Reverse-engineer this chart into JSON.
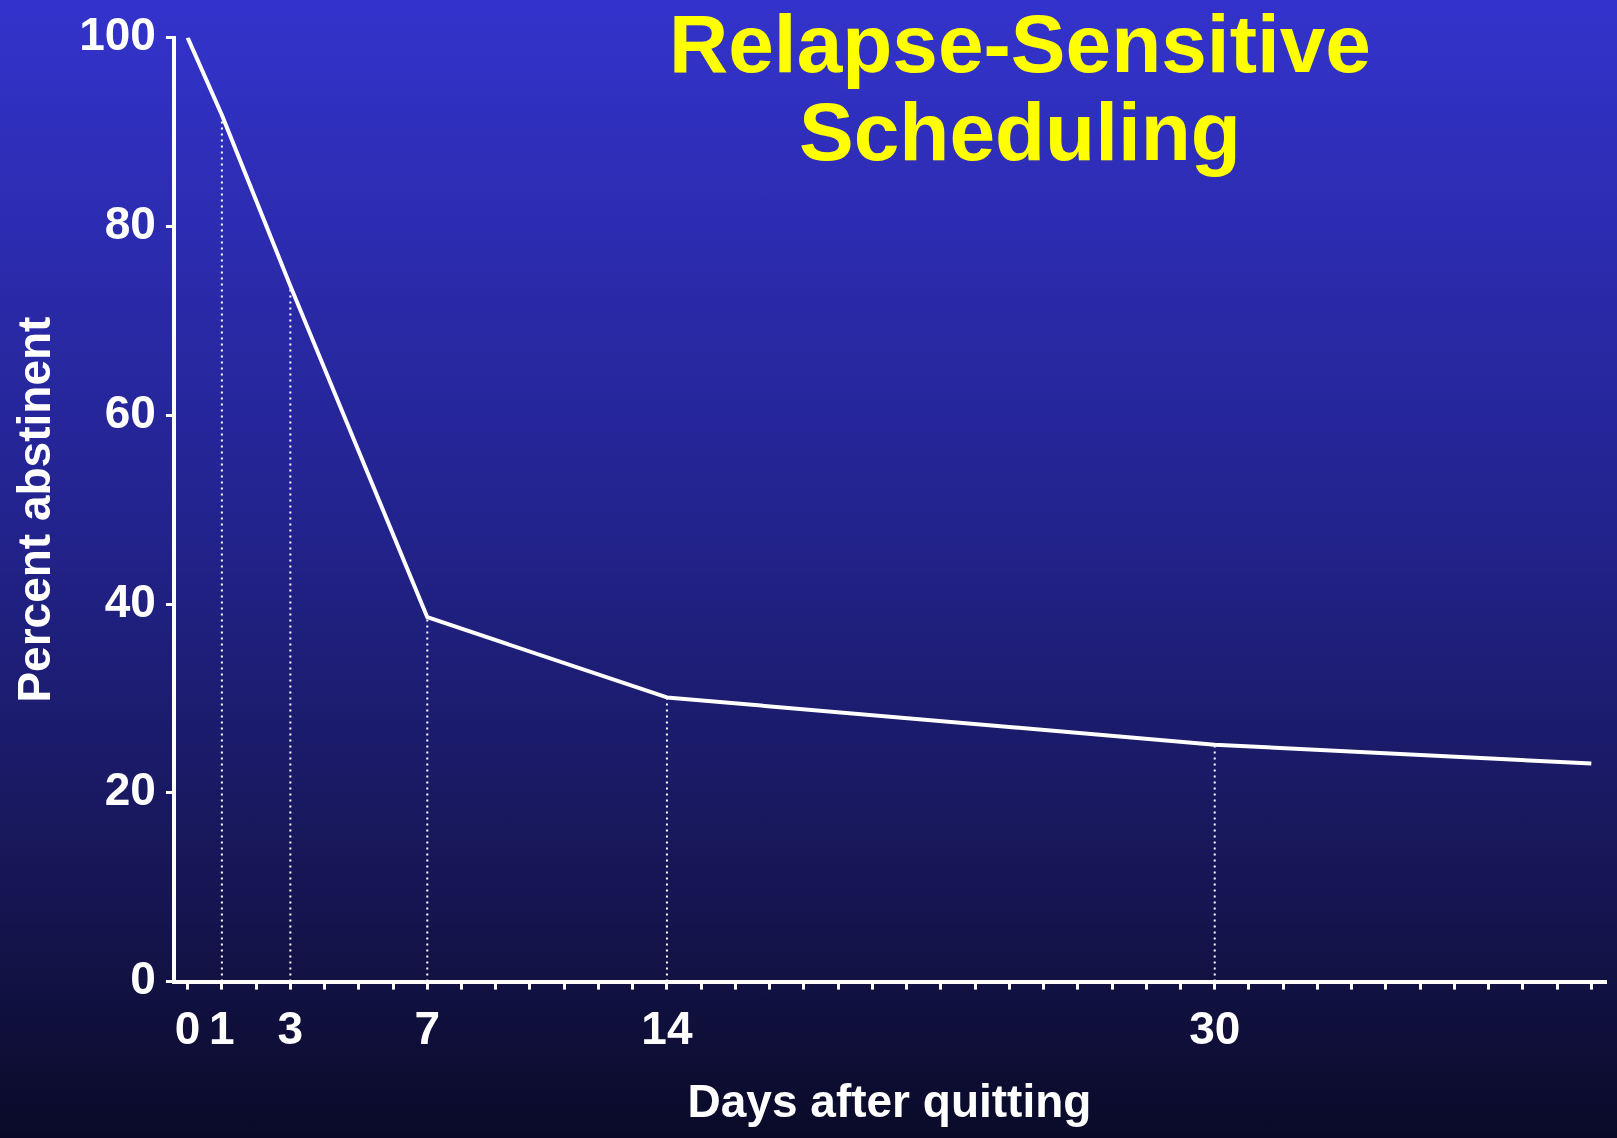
{
  "chart_data": {
    "type": "line",
    "title": "Relapse-Sensitive Scheduling",
    "xlabel": "Days after quitting",
    "ylabel": "Percent abstinent",
    "x": [
      0,
      1,
      3,
      7,
      14,
      30,
      41
    ],
    "series": [
      {
        "color": "#ffffff",
        "values": [
          100,
          91.8,
          73.7,
          38.6,
          30.1,
          25.1,
          23.1
        ]
      }
    ],
    "xlim": [
      -0.4,
      41.4
    ],
    "xticks": [
      0,
      1,
      {
        "value": 2,
        "label": null
      },
      3,
      {
        "value": 4,
        "label": null
      },
      {
        "value": 5,
        "label": null
      },
      {
        "value": 6,
        "label": null
      },
      7,
      {
        "value": 8,
        "label": null
      },
      {
        "value": 9,
        "label": null
      },
      {
        "value": 10,
        "label": null
      },
      {
        "value": 11,
        "label": null
      },
      {
        "value": 12,
        "label": null
      },
      {
        "value": 13,
        "label": null
      },
      14,
      {
        "value": 15,
        "label": null
      },
      {
        "value": 16,
        "label": null
      },
      {
        "value": 17,
        "label": null
      },
      {
        "value": 18,
        "label": null
      },
      {
        "value": 19,
        "label": null
      },
      {
        "value": 20,
        "label": null
      },
      {
        "value": 21,
        "label": null
      },
      {
        "value": 22,
        "label": null
      },
      {
        "value": 23,
        "label": null
      },
      {
        "value": 24,
        "label": null
      },
      {
        "value": 25,
        "label": null
      },
      {
        "value": 26,
        "label": null
      },
      {
        "value": 27,
        "label": null
      },
      {
        "value": 28,
        "label": null
      },
      {
        "value": 29,
        "label": null
      },
      30,
      {
        "value": 31,
        "label": null
      },
      {
        "value": 32,
        "label": null
      },
      {
        "value": 33,
        "label": null
      },
      {
        "value": 34,
        "label": null
      },
      {
        "value": 35,
        "label": null
      },
      {
        "value": 36,
        "label": null
      },
      {
        "value": 37,
        "label": null
      },
      {
        "value": 38,
        "label": null
      },
      {
        "value": 39,
        "label": null
      },
      {
        "value": 40,
        "label": null
      },
      {
        "value": 41,
        "label": null
      }
    ],
    "ylim": [
      0,
      100
    ],
    "yticks": [
      0,
      20,
      40,
      60,
      80,
      100
    ],
    "ref_lines": [
      {
        "axis": "x",
        "value": 1,
        "color": "#ffffff",
        "line_style": "dotted"
      },
      {
        "axis": "x",
        "value": 3,
        "color": "#ffffff",
        "line_style": "dotted"
      },
      {
        "axis": "x",
        "value": 7,
        "color": "#ffffff",
        "line_style": "dotted"
      },
      {
        "axis": "x",
        "value": 14,
        "color": "#ffffff",
        "line_style": "dotted"
      },
      {
        "axis": "x",
        "value": 30,
        "color": "#ffffff",
        "line_style": "dotted"
      }
    ],
    "grid": false,
    "legend": false,
    "marker": "none",
    "line_style": "solid"
  }
}
